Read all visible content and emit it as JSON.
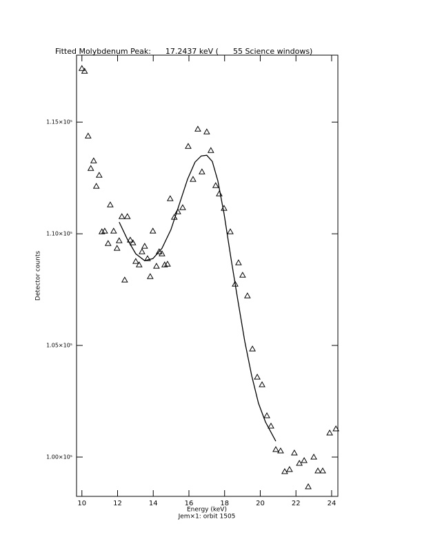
{
  "chart_data": {
    "type": "scatter",
    "title": "Fitted Molybdenum Peak:      17.2437 keV (      55 Science windows)",
    "x_label": "Energy (keV)",
    "subtitle": "Jem×1: orbit 1505",
    "y_label": "Detector counts",
    "xlim": [
      9.7,
      24.35
    ],
    "ylim": [
      98240,
      118000
    ],
    "xticks": [
      10,
      12,
      14,
      16,
      18,
      20,
      22,
      24
    ],
    "yticks": [
      {
        "value": 100000,
        "label": "1.00×10⁵"
      },
      {
        "value": 105000,
        "label": "1.05×10⁵"
      },
      {
        "value": 110000,
        "label": "1.10×10⁵"
      },
      {
        "value": 115000,
        "label": "1.15×10⁵"
      }
    ],
    "grid": false,
    "series": [
      {
        "type": "scatter",
        "marker": "triangle",
        "color": "#000000",
        "x": [
          10.0,
          10.15,
          10.35,
          10.5,
          10.66,
          10.81,
          10.97,
          11.12,
          11.28,
          11.47,
          11.59,
          11.78,
          11.97,
          12.09,
          12.24,
          12.4,
          12.55,
          12.71,
          12.86,
          13.02,
          13.21,
          13.37,
          13.52,
          13.68,
          13.83,
          13.98,
          14.18,
          14.33,
          14.49,
          14.64,
          14.8,
          14.95,
          15.18,
          15.38,
          15.65,
          15.96,
          16.23,
          16.5,
          16.73,
          17.0,
          17.23,
          17.5,
          17.7,
          17.97,
          18.32,
          18.59,
          18.78,
          19.01,
          19.28,
          19.56,
          19.83,
          20.1,
          20.37,
          20.6,
          20.87,
          21.14,
          21.37,
          21.64,
          21.91,
          22.19,
          22.46,
          22.69,
          23.0,
          23.23,
          23.5,
          23.89,
          24.24
        ],
        "values": [
          117405,
          117282,
          114381,
          112930,
          113270,
          112128,
          112622,
          110091,
          110122,
          109567,
          111295,
          110122,
          109351,
          109690,
          110770,
          107931,
          110770,
          109721,
          109597,
          108764,
          108610,
          109196,
          109443,
          108888,
          108085,
          110122,
          108548,
          109196,
          109104,
          108610,
          108641,
          111573,
          110739,
          110986,
          111171,
          113918,
          112437,
          114689,
          112776,
          114566,
          113733,
          112159,
          111789,
          111140,
          110091,
          107746,
          108703,
          108147,
          107221,
          104845,
          103580,
          103240,
          101852,
          101389,
          100339,
          100278,
          99352,
          99445,
          100185,
          99722,
          99846,
          98673,
          100000,
          99383,
          99383,
          101080,
          101265
        ]
      },
      {
        "type": "line",
        "color": "#000000",
        "x": [
          12.09,
          12.55,
          13.02,
          13.52,
          13.98,
          14.49,
          14.99,
          15.45,
          15.92,
          16.34,
          16.69,
          17.0,
          17.31,
          17.62,
          17.97,
          18.36,
          18.74,
          19.13,
          19.52,
          19.9,
          20.29,
          20.87
        ],
        "values": [
          110524,
          109752,
          109104,
          108795,
          108888,
          109351,
          110184,
          111295,
          112437,
          113208,
          113486,
          113517,
          113239,
          112375,
          110894,
          108888,
          107036,
          105184,
          103641,
          102407,
          101574,
          100710
        ]
      }
    ]
  }
}
